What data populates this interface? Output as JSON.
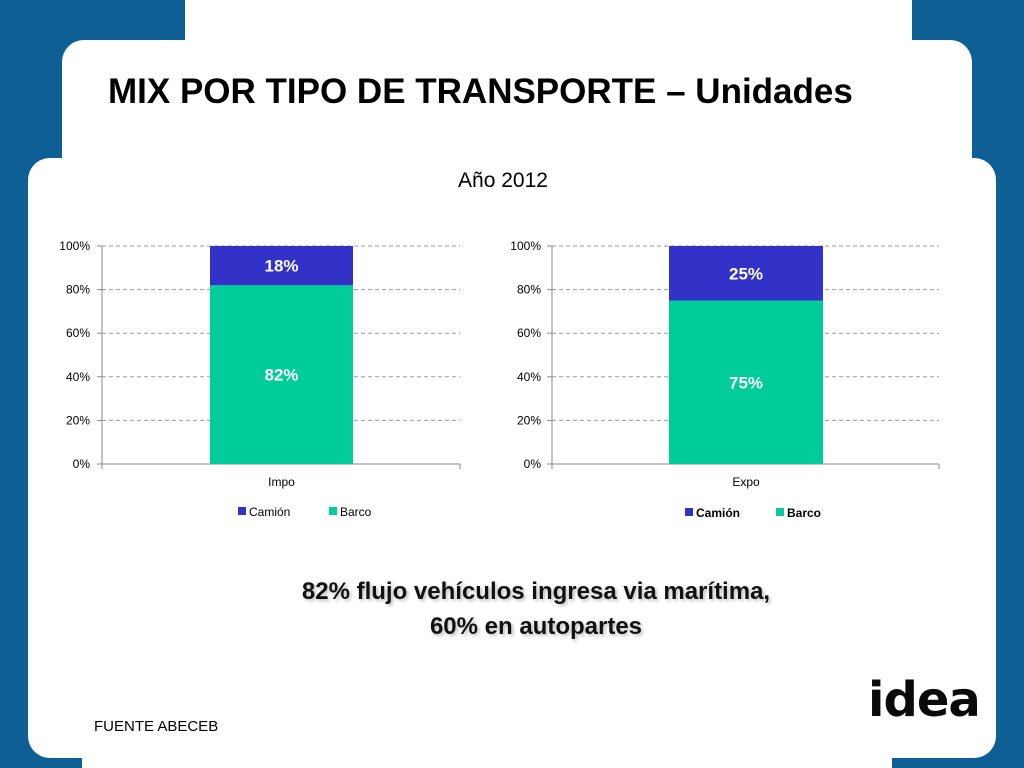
{
  "slide": {
    "title": "MIX POR TIPO DE TRANSPORTE – Unidades",
    "subtitle": "Año 2012",
    "note_line1": "82% flujo vehículos ingresa via marítima,",
    "note_line2": "60% en autopartes",
    "source": "FUENTE ABECEB",
    "logo_text": "idea"
  },
  "colors": {
    "background": "#0d5f94",
    "camion": "#3232c8",
    "barco": "#00cc99"
  },
  "chart_data": [
    {
      "type": "bar",
      "stacked": true,
      "categories": [
        "Impo"
      ],
      "series": [
        {
          "name": "Camión",
          "values": [
            18
          ]
        },
        {
          "name": "Barco",
          "values": [
            82
          ]
        }
      ],
      "data_labels": [
        "18%",
        "82%"
      ],
      "yticks": [
        "0%",
        "20%",
        "40%",
        "60%",
        "80%",
        "100%"
      ],
      "ylim": [
        0,
        100
      ],
      "grid": true,
      "legend": "bottom"
    },
    {
      "type": "bar",
      "stacked": true,
      "categories": [
        "Expo"
      ],
      "series": [
        {
          "name": "Camión",
          "values": [
            25
          ]
        },
        {
          "name": "Barco",
          "values": [
            75
          ]
        }
      ],
      "data_labels": [
        "25%",
        "75%"
      ],
      "yticks": [
        "0%",
        "20%",
        "40%",
        "60%",
        "80%",
        "100%"
      ],
      "ylim": [
        0,
        100
      ],
      "grid": true,
      "legend": "bottom"
    }
  ]
}
